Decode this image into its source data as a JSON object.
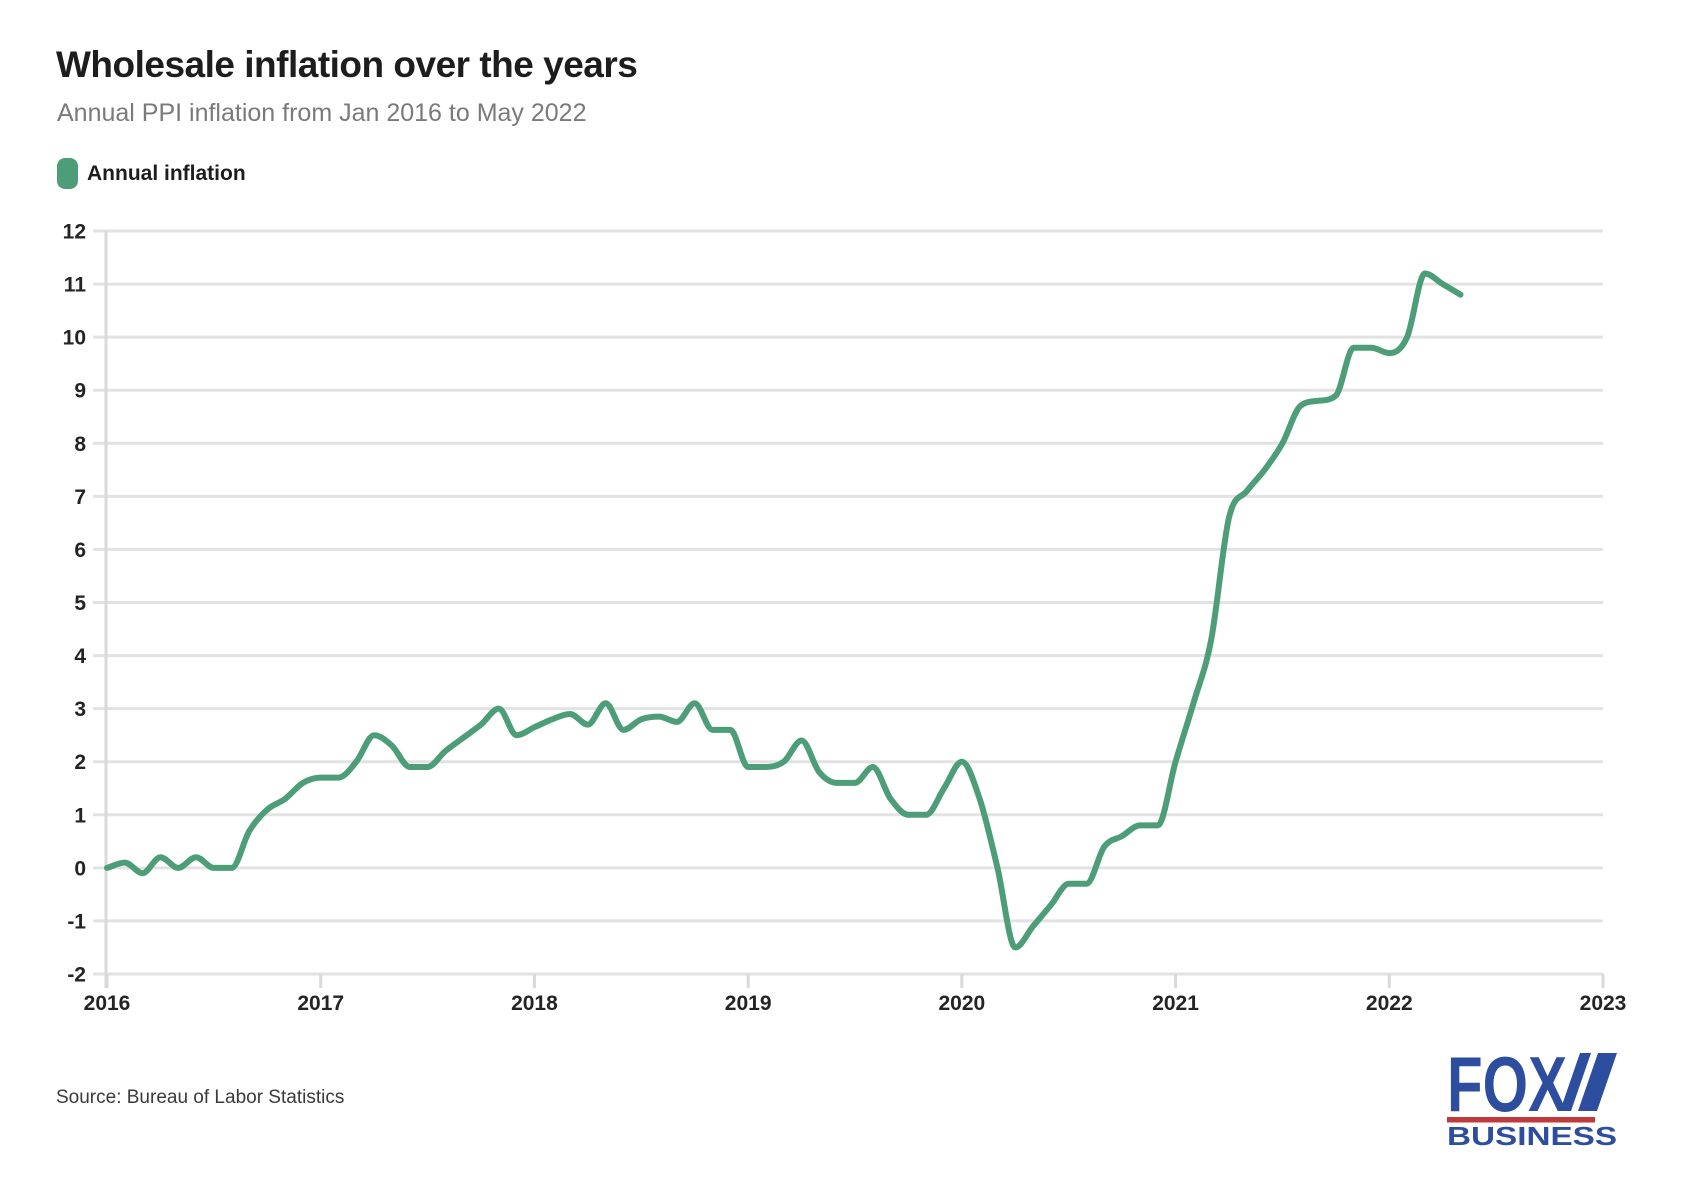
{
  "header": {
    "title": "Wholesale inflation over the years",
    "subtitle": "Annual PPI inflation from Jan 2016 to May 2022"
  },
  "legend": {
    "label": "Annual inflation"
  },
  "chart_data": {
    "type": "line",
    "title": "Wholesale inflation over the years",
    "subtitle": "Annual PPI inflation from Jan 2016 to May 2022",
    "xlabel": "",
    "ylabel": "",
    "x_start": "Jan 2016",
    "x_end": "May 2022",
    "x_interval": "monthly",
    "x_tick_labels": [
      "2016",
      "2017",
      "2018",
      "2019",
      "2020",
      "2021",
      "2022",
      "2023"
    ],
    "y_ticks": [
      12,
      11,
      10,
      9,
      8,
      7,
      6,
      5,
      4,
      3,
      2,
      1,
      0,
      -1,
      -2
    ],
    "ylim": [
      -2,
      12
    ],
    "grid": "horizontal",
    "legend_position": "top-left",
    "series": [
      {
        "name": "Annual inflation",
        "color": "#4d9e78",
        "values": [
          0.0,
          0.1,
          -0.1,
          0.2,
          0.0,
          0.2,
          0.0,
          0.0,
          0.7,
          1.1,
          1.3,
          1.6,
          1.7,
          1.7,
          2.0,
          2.5,
          2.3,
          1.9,
          1.9,
          2.2,
          2.45,
          2.7,
          3.0,
          2.5,
          2.65,
          2.8,
          2.9,
          2.7,
          3.1,
          2.6,
          2.8,
          2.85,
          2.75,
          3.1,
          2.6,
          2.6,
          1.9,
          1.9,
          2.0,
          2.4,
          1.8,
          1.6,
          1.6,
          1.9,
          1.3,
          1.0,
          1.0,
          1.5,
          2.0,
          1.3,
          0.0,
          -1.5,
          -1.1,
          -0.7,
          -0.3,
          -0.3,
          0.4,
          0.6,
          0.8,
          0.8,
          2.0,
          3.1,
          4.3,
          6.6,
          7.1,
          7.5,
          8.0,
          8.7,
          8.8,
          8.9,
          9.8,
          9.8,
          9.7,
          10.0,
          11.2,
          11.0,
          10.8
        ]
      }
    ]
  },
  "footer": {
    "source": "Source: Bureau of Labor Statistics"
  },
  "logo": {
    "line1": "FOX",
    "line2": "BUSINESS",
    "blue": "#2d4d9e",
    "red": "#c0393b"
  },
  "colors": {
    "line": "#4d9e78",
    "grid": "#e2e2e2",
    "axis": "#d9d9d9",
    "tick_label": "#242424",
    "title": "#1d1d1d",
    "subtitle": "#7a7a7a",
    "source": "#3a3a3a",
    "background": "#ffffff"
  }
}
